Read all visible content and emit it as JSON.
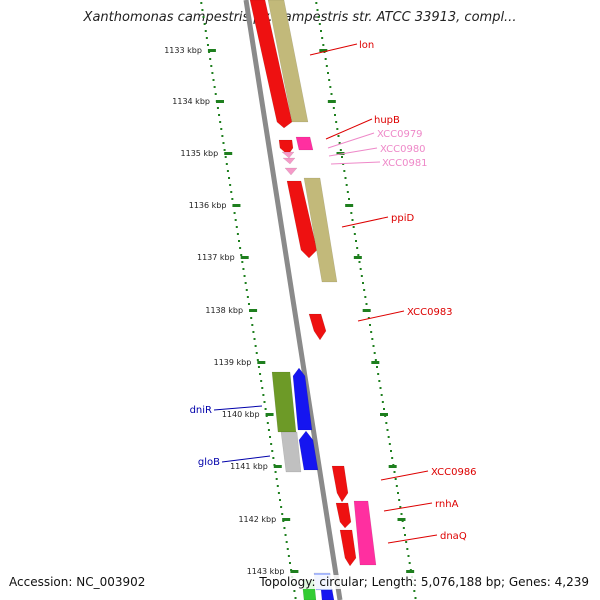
{
  "title": "Xanthomonas campestris pv. campestris str. ATCC 33913, compl...",
  "footer": {
    "accession": "Accession: NC_003902",
    "summary": "Topology: circular; Length: 5,076,188 bp; Genes: 4,239"
  },
  "colors": {
    "backbone": "#8a8a8a",
    "tick": "#1e7f1e",
    "gene_red": "#ee1111",
    "gene_pink": "#ff2fa0",
    "gene_lightpink": "#f59ac8",
    "gene_khaki": "#c2b97a",
    "gene_olive": "#6d9a27",
    "gene_blue": "#1515f0",
    "gene_gray": "#c0c0c0",
    "label_red": "#dd0000",
    "label_pink": "#ee88c8",
    "label_blue": "#0000aa"
  },
  "ruler": [
    "1133 kbp",
    "1134 kbp",
    "1135 kbp",
    "1136 kbp",
    "1137 kbp",
    "1138 kbp",
    "1139 kbp",
    "1140 kbp",
    "1141 kbp",
    "1142 kbp",
    "1143 kbp"
  ],
  "gene_labels": [
    {
      "name": "lon",
      "color": "red"
    },
    {
      "name": "hupB",
      "color": "red"
    },
    {
      "name": "XCC0979",
      "color": "pink"
    },
    {
      "name": "XCC0980",
      "color": "pink"
    },
    {
      "name": "XCC0981",
      "color": "pink"
    },
    {
      "name": "ppiD",
      "color": "red"
    },
    {
      "name": "XCC0983",
      "color": "red"
    },
    {
      "name": "XCC0986",
      "color": "red"
    },
    {
      "name": "rnhA",
      "color": "red"
    },
    {
      "name": "dnaQ",
      "color": "red"
    },
    {
      "name": "dniR",
      "color": "blue"
    },
    {
      "name": "gloB",
      "color": "blue"
    }
  ]
}
